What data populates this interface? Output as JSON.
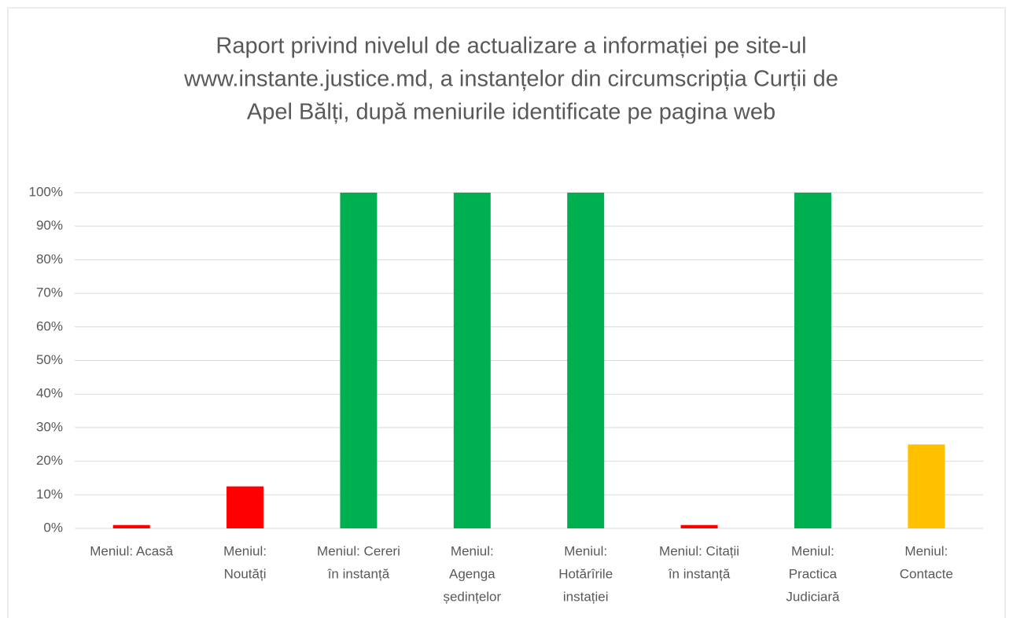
{
  "chart_data": {
    "type": "bar",
    "title": [
      "Raport privind nivelul de actualizare a informației pe site-ul",
      "www.instante.justice.md, a instanțelor din circumscripția Curții de",
      "Apel Bălți, după meniurile identificate pe pagina web"
    ],
    "categories": [
      [
        "Meniul: Acasă"
      ],
      [
        "Meniul:",
        "Noutăți"
      ],
      [
        "Meniul: Cereri",
        "în instanță"
      ],
      [
        "Meniul:",
        "Agenga",
        "ședințelor"
      ],
      [
        "Meniul:",
        "Hotărîrile",
        "instației"
      ],
      [
        "Meniul: Citații",
        "în instanță"
      ],
      [
        "Meniul:",
        "Practica",
        "Judiciară"
      ],
      [
        "Meniul:",
        "Contacte"
      ]
    ],
    "values": [
      1,
      12.5,
      100,
      100,
      100,
      1,
      100,
      25
    ],
    "colors": [
      "#ff0000",
      "#ff0000",
      "#00b050",
      "#00b050",
      "#00b050",
      "#ff0000",
      "#00b050",
      "#ffc000"
    ],
    "ylim": [
      0,
      100
    ],
    "yticks": [
      {
        "value": 0,
        "label": "0%"
      },
      {
        "value": 10,
        "label": "10%"
      },
      {
        "value": 20,
        "label": "20%"
      },
      {
        "value": 30,
        "label": "30%"
      },
      {
        "value": 40,
        "label": "40%"
      },
      {
        "value": 50,
        "label": "50%"
      },
      {
        "value": 60,
        "label": "60%"
      },
      {
        "value": 70,
        "label": "70%"
      },
      {
        "value": 80,
        "label": "80%"
      },
      {
        "value": 90,
        "label": "90%"
      },
      {
        "value": 100,
        "label": "100%"
      }
    ],
    "grid": true
  }
}
